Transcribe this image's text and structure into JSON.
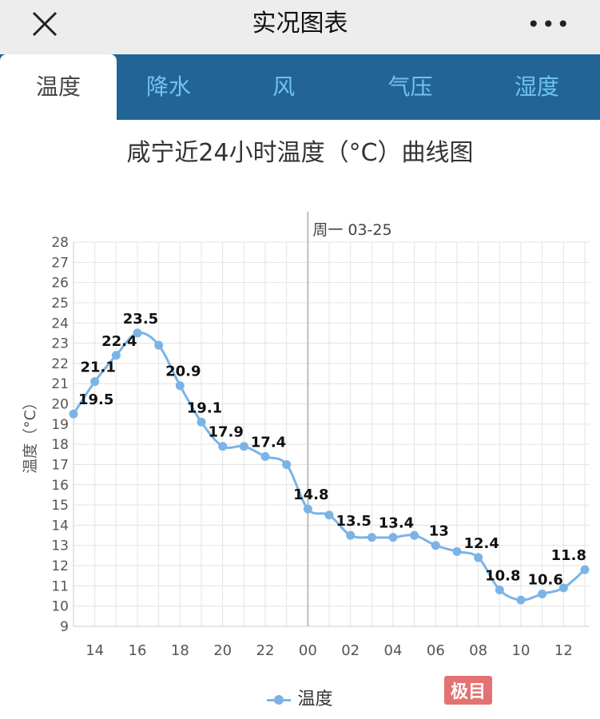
{
  "header": {
    "title": "实况图表",
    "more": "•••"
  },
  "tabs": [
    {
      "label": "温度"
    },
    {
      "label": "降水"
    },
    {
      "label": "风"
    },
    {
      "label": "气压"
    },
    {
      "label": "湿度"
    }
  ],
  "watermark": "极目",
  "chart_data": {
    "type": "line",
    "title": "咸宁近24小时温度（°C）曲线图",
    "ylabel": "温度（°C）",
    "xlabel": "",
    "ylim": [
      9,
      28
    ],
    "yticks": [
      9,
      10,
      11,
      12,
      13,
      14,
      15,
      16,
      17,
      18,
      19,
      20,
      21,
      22,
      23,
      24,
      25,
      26,
      27,
      28
    ],
    "x": [
      "13",
      "14",
      "15",
      "16",
      "17",
      "18",
      "19",
      "20",
      "21",
      "22",
      "23",
      "00",
      "01",
      "02",
      "03",
      "04",
      "05",
      "06",
      "07",
      "08",
      "09",
      "10",
      "11",
      "12",
      "13"
    ],
    "xtick_labels": [
      "14",
      "16",
      "18",
      "20",
      "22",
      "00",
      "02",
      "04",
      "06",
      "08",
      "10",
      "12"
    ],
    "day_marker": {
      "at": "00",
      "label": "周一 03-25"
    },
    "grid": true,
    "legend": "bottom",
    "series": [
      {
        "name": "温度",
        "color": "#7cb3e6",
        "values": [
          19.5,
          21.1,
          22.4,
          23.5,
          22.9,
          20.9,
          19.1,
          17.9,
          17.9,
          17.4,
          17.0,
          14.8,
          14.5,
          13.5,
          13.4,
          13.4,
          13.5,
          13.0,
          12.7,
          12.4,
          10.8,
          10.3,
          10.6,
          10.9,
          11.8
        ],
        "labels": [
          "19.5",
          "21.1",
          "22.4",
          "23.5",
          null,
          "20.9",
          "19.1",
          "17.9",
          null,
          "17.4",
          null,
          "14.8",
          null,
          "13.5",
          null,
          "13.4",
          null,
          "13",
          null,
          "12.4",
          "10.8",
          null,
          "10.6",
          null,
          "11.8"
        ]
      }
    ]
  }
}
